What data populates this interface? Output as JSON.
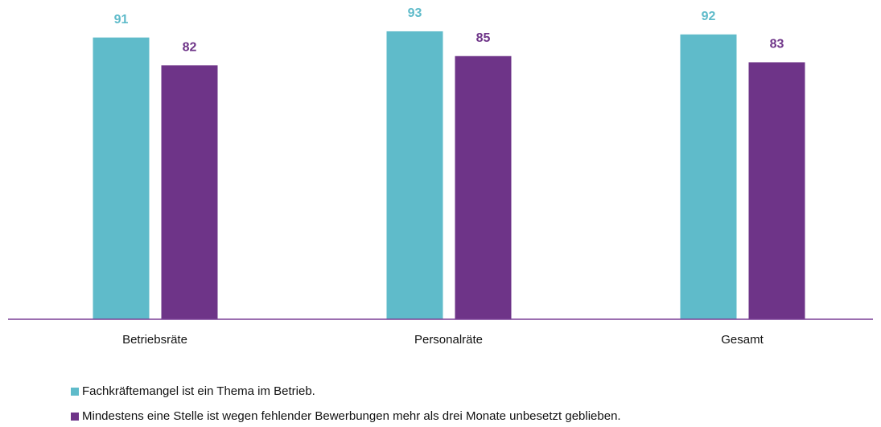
{
  "chart_data": {
    "type": "bar",
    "categories": [
      "Betriebsräte",
      "Personalräte",
      "Gesamt"
    ],
    "series": [
      {
        "name": "Fachkräftemangel ist ein Thema im Betrieb.",
        "color": "#5fbbca",
        "values": [
          91,
          93,
          92
        ]
      },
      {
        "name": "Mindestens eine Stelle ist wegen fehlender Bewerbungen mehr als drei Monate unbesetzt geblieben.",
        "color": "#6e3488",
        "values": [
          82,
          85,
          83
        ]
      }
    ],
    "ylim": [
      0,
      100
    ],
    "legend": "bottom-left",
    "axis_color": "#7a3f95"
  }
}
